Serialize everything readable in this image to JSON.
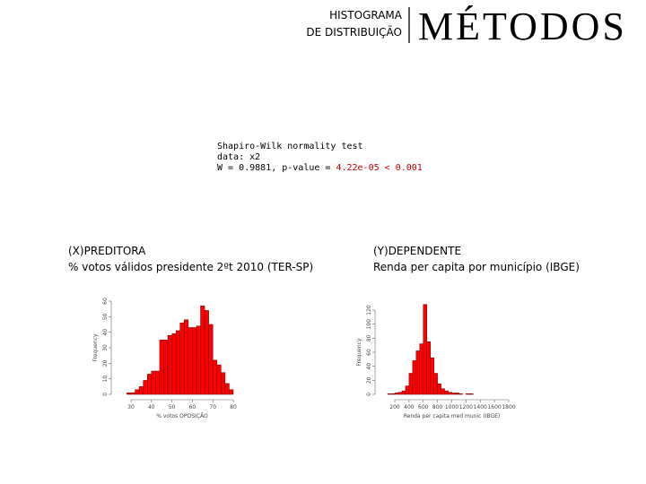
{
  "header": {
    "line1": "HISTOGRAMA",
    "line2": "DE DISTRIBUIÇÃO",
    "title": "MÉTODOS"
  },
  "test": {
    "line1": "Shapiro-Wilk normality test",
    "line2": "data: x2",
    "line3": "W = 0.9881, p-value = ",
    "highlight": "4.22e-05 < 0.001"
  },
  "chart_data": [
    {
      "type": "histogram",
      "title": "(X)PREDITORA",
      "subtitle": "% votos válidos presidente 2ºt 2010 (TER-SP)",
      "x_label": "% votos OPOSIÇÃO",
      "y_label": "Frequency",
      "color": "#ff0000",
      "bins": [
        28,
        30,
        32,
        34,
        36,
        38,
        40,
        42,
        44,
        46,
        48,
        50,
        52,
        54,
        56,
        58,
        60,
        62,
        64,
        66,
        68,
        70,
        72,
        74,
        76,
        78,
        80
      ],
      "values": [
        1,
        1,
        3,
        5,
        9,
        13,
        15,
        15,
        35,
        35,
        38,
        39,
        41,
        46,
        48,
        43,
        43,
        44,
        57,
        54,
        45,
        22,
        19,
        14,
        7,
        3
      ],
      "xlim": [
        30,
        80
      ],
      "xticks": [
        30,
        40,
        50,
        60,
        70,
        80
      ],
      "ylim": [
        0,
        60
      ],
      "yticks": [
        0,
        10,
        20,
        30,
        40,
        50,
        60
      ]
    },
    {
      "type": "histogram",
      "title": "(Y)DEPENDENTE",
      "subtitle": "Renda per capita por município (IBGE)",
      "x_label": "Renda per capita med munic (IBGE)",
      "y_label": "Frequency",
      "color": "#ff0000",
      "bins": [
        100,
        150,
        200,
        250,
        300,
        350,
        400,
        450,
        500,
        550,
        600,
        650,
        700,
        750,
        800,
        850,
        900,
        950,
        1000,
        1050,
        1100,
        1150,
        1200,
        1250,
        1300
      ],
      "values": [
        1,
        1,
        2,
        3,
        5,
        12,
        30,
        48,
        62,
        72,
        128,
        75,
        52,
        30,
        15,
        8,
        5,
        3,
        2,
        2,
        1,
        0,
        1,
        1
      ],
      "xlim": [
        200,
        1800
      ],
      "xticks": [
        200,
        400,
        600,
        800,
        1000,
        1200,
        1400,
        1600,
        1800
      ],
      "ylim": [
        0,
        120
      ],
      "yticks": [
        0,
        20,
        40,
        60,
        80,
        100,
        120
      ]
    }
  ]
}
